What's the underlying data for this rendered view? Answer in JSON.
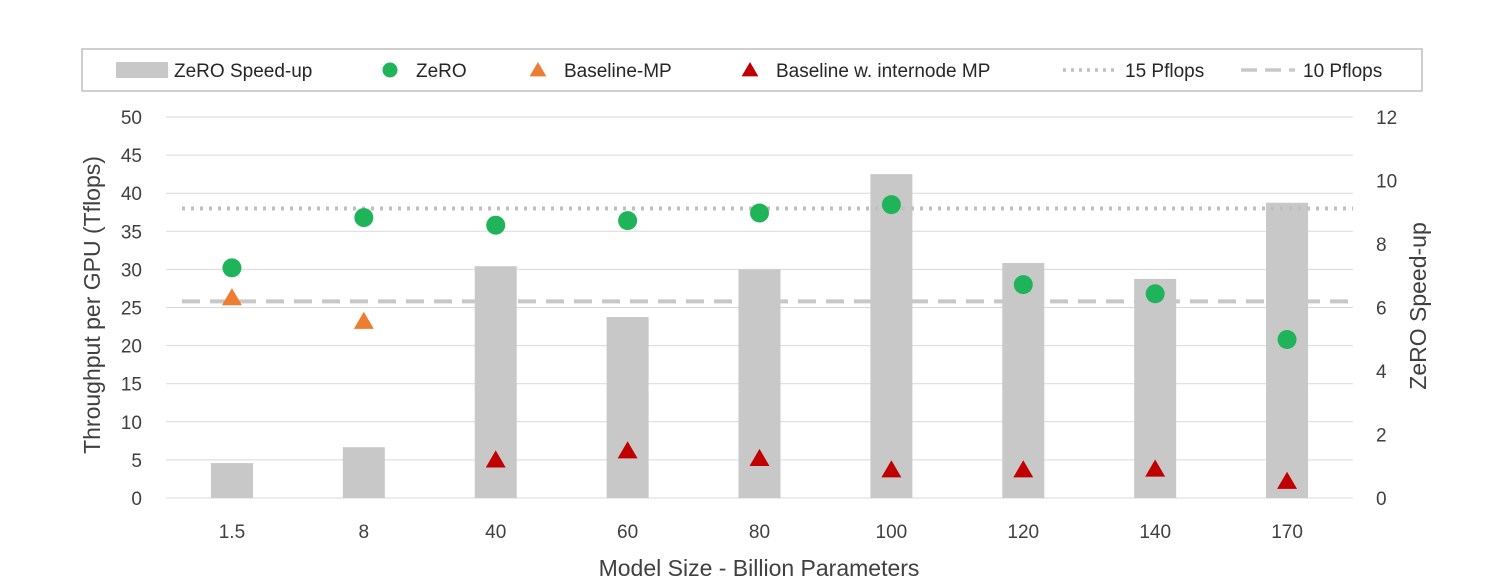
{
  "chart_data": {
    "type": "bar",
    "categories": [
      "1.5",
      "8",
      "40",
      "60",
      "80",
      "100",
      "120",
      "140",
      "170"
    ],
    "xlabel": "Model Size - Billion Parameters",
    "ylabel": "Throughput per GPU (Tflops)",
    "y2label": "ZeRO Speed-up",
    "ylim": [
      0,
      50
    ],
    "yticks": [
      "0",
      "5",
      "10",
      "15",
      "20",
      "25",
      "30",
      "35",
      "40",
      "45",
      "50"
    ],
    "y2lim": [
      0,
      12
    ],
    "y2ticks": [
      "0",
      "2",
      "4",
      "6",
      "8",
      "10",
      "12"
    ],
    "grid": true,
    "legend_position": "top",
    "series": [
      {
        "name": "ZeRO Speed-up",
        "type": "bar",
        "axis": "right",
        "color": "#c8c8c8",
        "values": [
          1.1,
          1.6,
          7.3,
          5.7,
          7.2,
          10.2,
          7.4,
          6.9,
          9.3
        ]
      },
      {
        "name": "ZeRO",
        "type": "scatter",
        "marker": "circle",
        "axis": "left",
        "color": "#1fb45a",
        "values": [
          30.2,
          36.8,
          35.8,
          36.4,
          37.4,
          38.5,
          28.0,
          26.8,
          20.8
        ]
      },
      {
        "name": "Baseline-MP",
        "type": "scatter",
        "marker": "triangle",
        "axis": "left",
        "color": "#ed7d31",
        "values": [
          26.3,
          23.2,
          null,
          null,
          null,
          null,
          null,
          null,
          null
        ]
      },
      {
        "name": "Baseline w. internode MP",
        "type": "scatter",
        "marker": "triangle",
        "axis": "left",
        "color": "#c00000",
        "values": [
          null,
          null,
          5.0,
          6.2,
          5.2,
          3.7,
          3.7,
          3.8,
          2.2
        ]
      },
      {
        "name": "15 Pflops",
        "type": "hline",
        "style": "dotted",
        "axis": "left",
        "color": "#bfbfbf",
        "value": 38.0
      },
      {
        "name": "10 Pflops",
        "type": "hline",
        "style": "dashed",
        "axis": "left",
        "color": "#c8c8c8",
        "value": 25.8
      }
    ]
  }
}
